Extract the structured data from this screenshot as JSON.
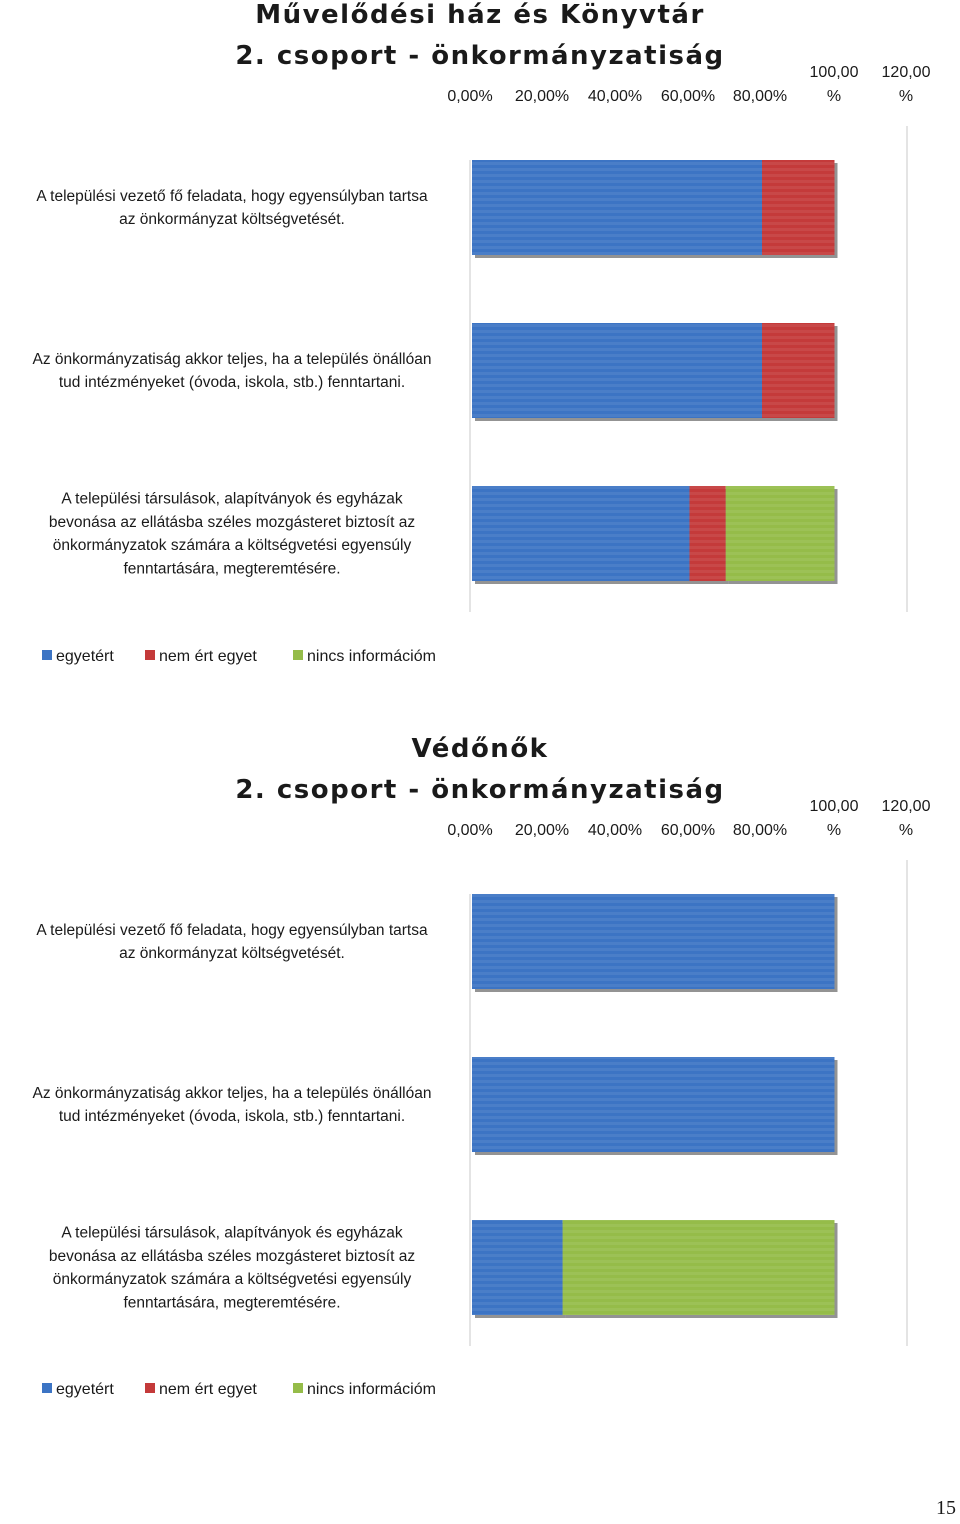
{
  "colors": {
    "egyetert": "#3c74c4",
    "nem_ert_egyet": "#c43a3a",
    "nincs_informaciom": "#95bc49",
    "axis": "#c8c8c8"
  },
  "page_number": "15",
  "chart_data": [
    {
      "type": "bar",
      "orientation": "horizontal",
      "stacked": true,
      "title_lines": [
        "Művelődési ház és Könyvtár",
        "2. csoport - önkormányzatiság"
      ],
      "xlim": [
        0,
        120
      ],
      "x_tick_labels": [
        [
          "0,00%"
        ],
        [
          "20,00%"
        ],
        [
          "40,00%"
        ],
        [
          "60,00%"
        ],
        [
          "80,00%"
        ],
        [
          "100,00",
          "%"
        ],
        [
          "120,00",
          "%"
        ]
      ],
      "legend_position": "bottom",
      "categories": [
        [
          "A települési vezető fő feladata, hogy egyensúlyban tartsa",
          "az önkormányzat költségvetését."
        ],
        [
          "Az önkormányzatiság akkor teljes, ha a település önállóan",
          "tud intézményeket (óvoda, iskola, stb.) fenntartani."
        ],
        [
          "A települési társulások, alapítványok és egyházak",
          "bevonása az ellátásba széles mozgásteret biztosít az",
          "önkormányzatok számára a költségvetési egyensúly",
          "fenntartására, megteremtésére."
        ]
      ],
      "series": [
        {
          "name": "egyetért",
          "color_key": "egyetert",
          "values": [
            80,
            80,
            60
          ]
        },
        {
          "name": "nem ért egyet",
          "color_key": "nem_ert_egyet",
          "values": [
            20,
            20,
            10
          ]
        },
        {
          "name": "nincs információm",
          "color_key": "nincs_informaciom",
          "values": [
            0,
            0,
            30
          ]
        }
      ]
    },
    {
      "type": "bar",
      "orientation": "horizontal",
      "stacked": true,
      "title_lines": [
        "Védőnők",
        "2. csoport - önkormányzatiság"
      ],
      "xlim": [
        0,
        120
      ],
      "x_tick_labels": [
        [
          "0,00%"
        ],
        [
          "20,00%"
        ],
        [
          "40,00%"
        ],
        [
          "60,00%"
        ],
        [
          "80,00%"
        ],
        [
          "100,00",
          "%"
        ],
        [
          "120,00",
          "%"
        ]
      ],
      "legend_position": "bottom",
      "categories": [
        [
          "A települési vezető fő feladata, hogy egyensúlyban tartsa",
          "az önkormányzat költségvetését."
        ],
        [
          "Az önkormányzatiság akkor teljes, ha a település önállóan",
          "tud intézményeket (óvoda, iskola, stb.) fenntartani."
        ],
        [
          "A települési társulások, alapítványok és egyházak",
          "bevonása az ellátásba széles mozgásteret biztosít az",
          "önkormányzatok számára a költségvetési egyensúly",
          "fenntartására, megteremtésére."
        ]
      ],
      "series": [
        {
          "name": "egyetért",
          "color_key": "egyetert",
          "values": [
            100,
            100,
            25
          ]
        },
        {
          "name": "nem ért egyet",
          "color_key": "nem_ert_egyet",
          "values": [
            0,
            0,
            0
          ]
        },
        {
          "name": "nincs információm",
          "color_key": "nincs_informaciom",
          "values": [
            0,
            0,
            75
          ]
        }
      ]
    }
  ]
}
